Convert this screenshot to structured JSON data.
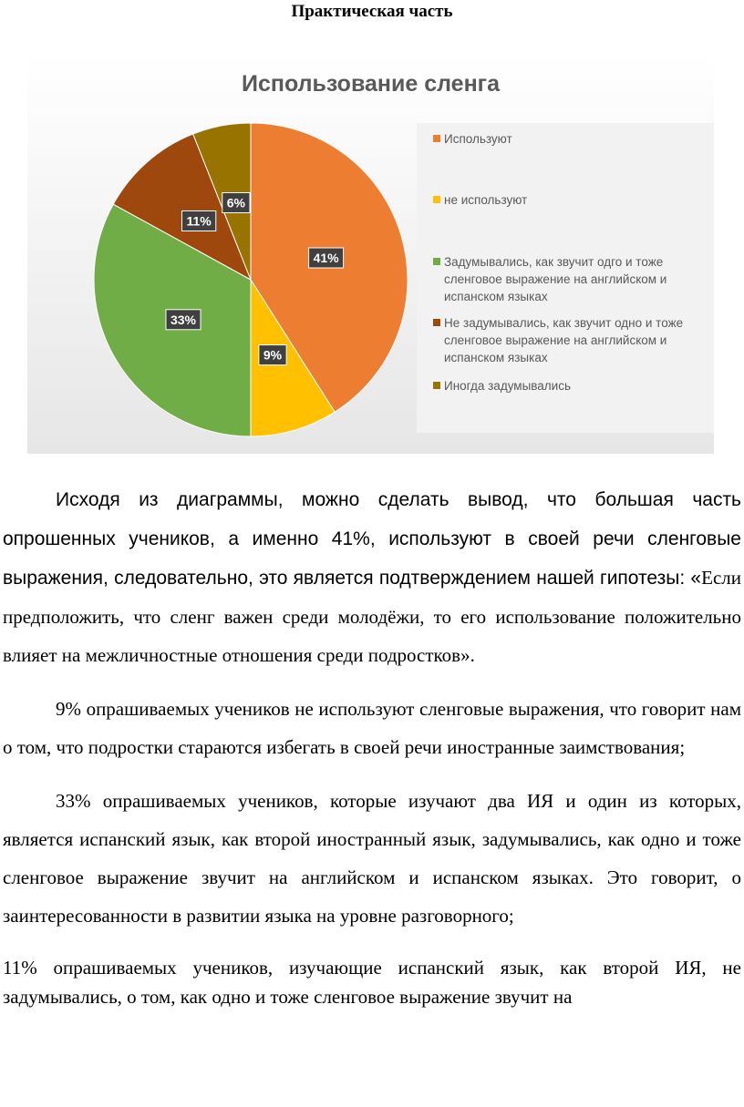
{
  "heading": "Практическая часть",
  "chart_data": {
    "type": "pie",
    "title": "Использование сленга",
    "categories": [
      "Используют",
      "не используют",
      "Задумывались, как звучит одго и тоже сленговое выражение на английском и испанском языках",
      "Не задумывались, как звучит одно и тоже сленговое выражение на английском и испанском языках",
      "Иногда задумывались"
    ],
    "values": [
      41,
      9,
      33,
      11,
      6
    ],
    "value_labels": [
      "41%",
      "9%",
      "33%",
      "11%",
      "6%"
    ],
    "colors": [
      "#ed7d31",
      "#ffc000",
      "#70ad47",
      "#9e480e",
      "#997300"
    ]
  },
  "paragraphs": [
    [
      "Исходя из диаграммы, можно сделать вывод, что большая часть опрошенных учеников, а именно 41%, используют в своей речи сленговые выражения, следовательно, это является подтверждением нашей гипотезы: «",
      "Если предположить, что сленг важен среди молодёжи, то его использование положительно влияет на межличностные   отношения среди подростков»."
    ],
    [
      "9% опрашиваемых учеников не используют сленговые выражения, что говорит нам о том, что подростки стараются избегать в своей речи иностранные заимствования;"
    ],
    [
      "33% опрашиваемых учеников, которые изучают два ИЯ и один из которых, является испанский язык, как второй иностранный язык, задумывались, как одно и тоже сленговое выражение звучит на английском и испанском языках. Это говорит, о заинтересованности в развитии языка на уровне  разговорного;"
    ],
    [
      "11% опрашиваемых учеников, изучающие испанский язык, как второй ИЯ, не задумывались, о том, как одно и тоже сленговое выражение звучит на"
    ]
  ]
}
